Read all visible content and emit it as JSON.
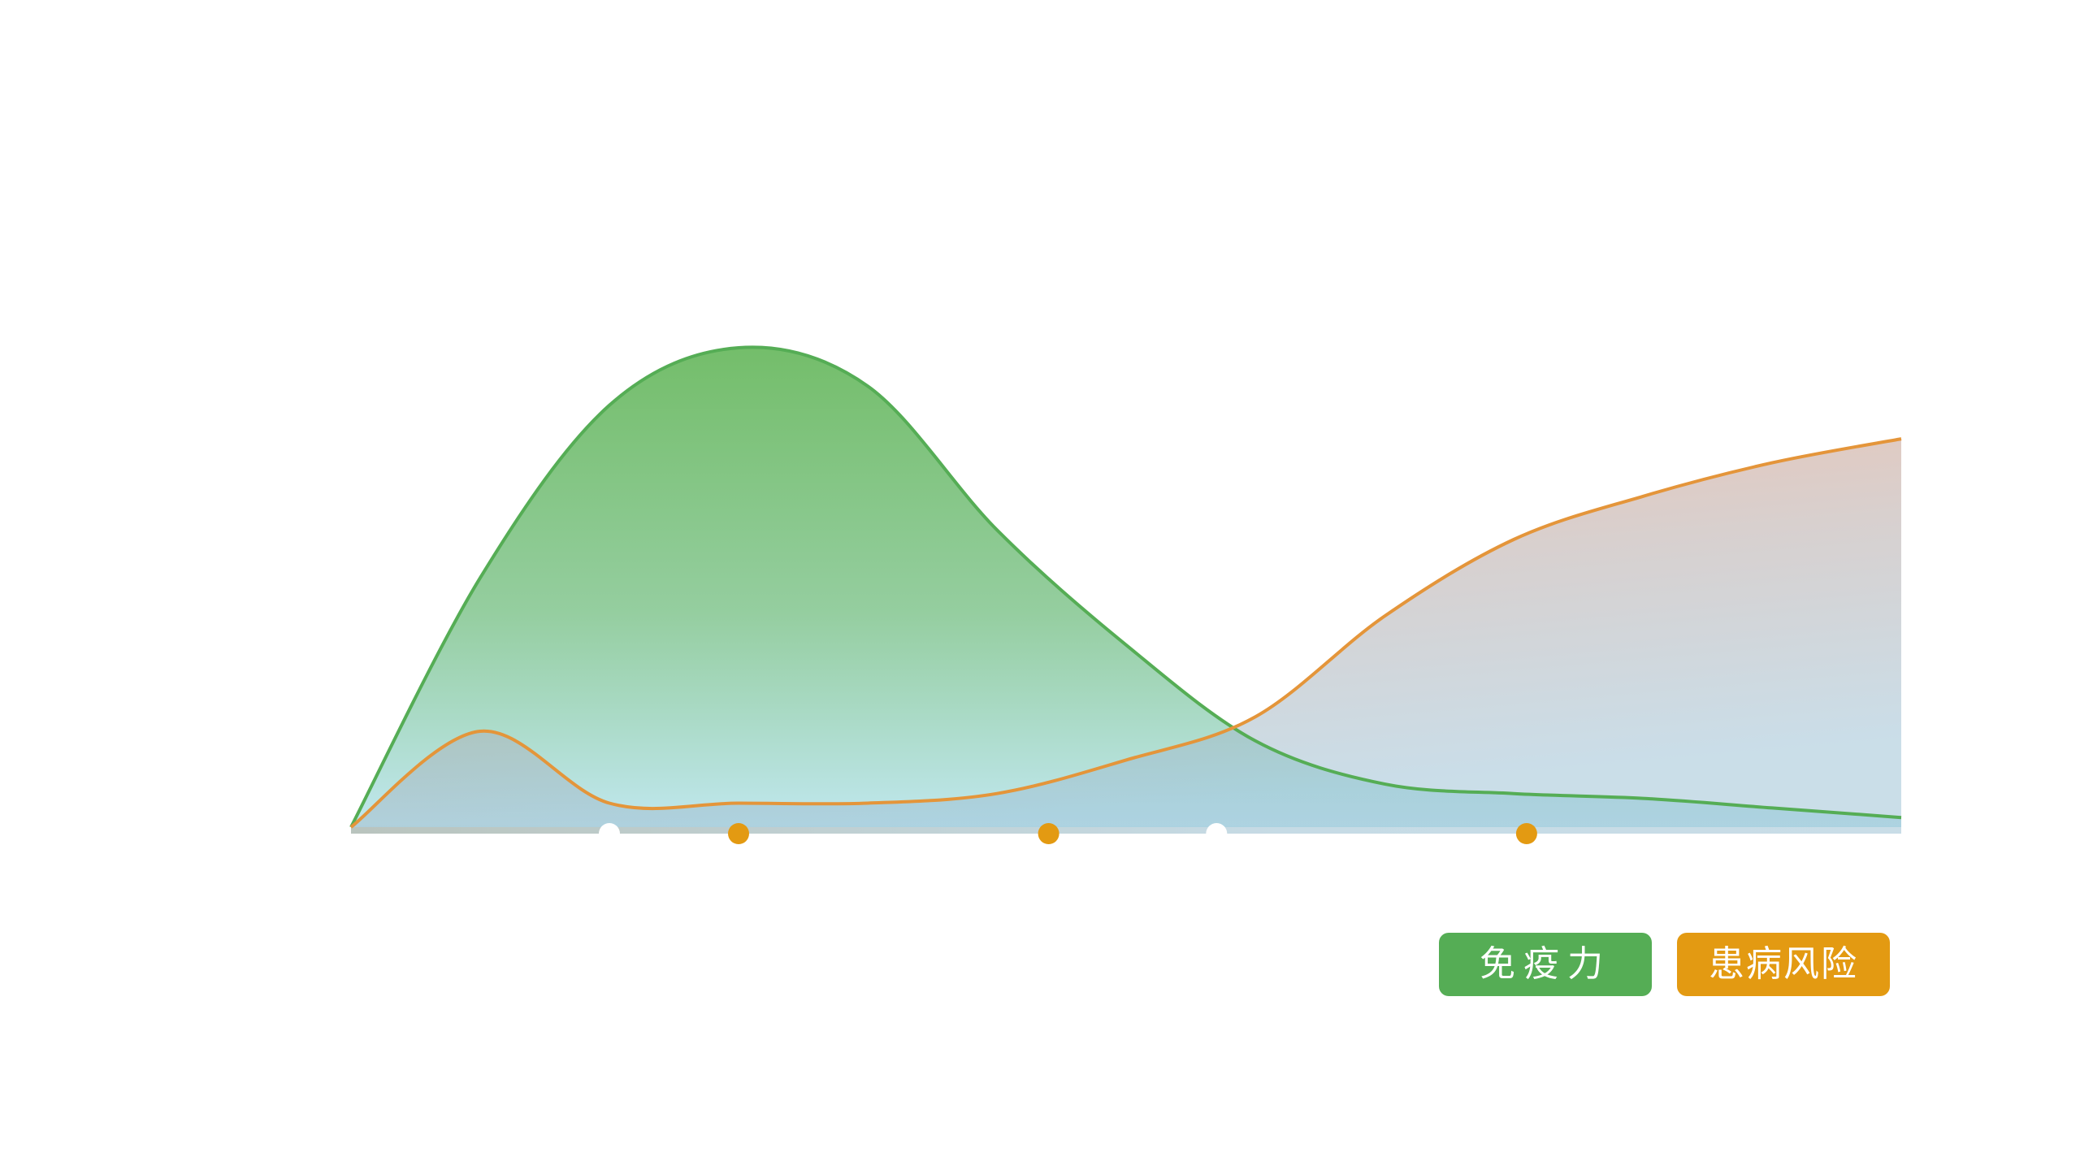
{
  "chart_data": {
    "type": "area",
    "x": [
      0,
      0.5,
      1,
      1.5,
      2,
      2.5,
      3,
      3.5,
      4,
      4.5,
      5,
      5.5,
      6
    ],
    "xlim": [
      0,
      6
    ],
    "ylim": [
      0,
      100
    ],
    "grid": false,
    "legend_position": "bottom-right",
    "x_markers": [
      {
        "x": 1.0,
        "color": "#ffffff"
      },
      {
        "x": 1.5,
        "color": "#e39a12"
      },
      {
        "x": 2.7,
        "color": "#e39a12"
      },
      {
        "x": 3.35,
        "color": "#ffffff"
      },
      {
        "x": 4.55,
        "color": "#e39a12"
      }
    ],
    "series": [
      {
        "name": "免疫力",
        "color": "#55ad55",
        "values": [
          0,
          52,
          88,
          100,
          92,
          62,
          38,
          18,
          9,
          7,
          6,
          4,
          2
        ]
      },
      {
        "name": "患病风险",
        "color": "#e39a12",
        "values": [
          0,
          20,
          5,
          5,
          5,
          7,
          14,
          23,
          44,
          60,
          69,
          76,
          81
        ]
      }
    ]
  },
  "legend": {
    "immunity_label": "免疫力",
    "risk_label": "患病风险",
    "immunity_color": "#55ad55",
    "risk_color": "#e39a12"
  }
}
